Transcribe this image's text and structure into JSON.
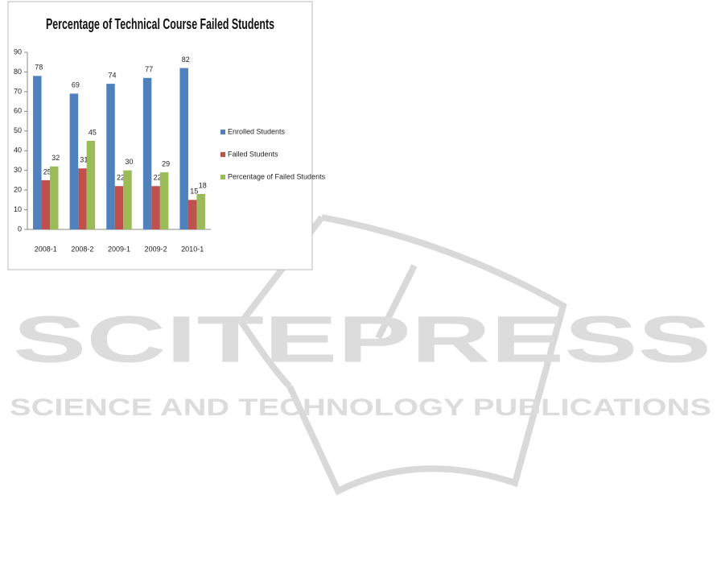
{
  "chart_data": {
    "type": "bar",
    "title": "Percentage of Technical Course Failed Students",
    "categories": [
      "2008-1",
      "2008-2",
      "2009-1",
      "2009-2",
      "2010-1"
    ],
    "series": [
      {
        "name": "Enrolled Students",
        "color": "#4f81bd",
        "values": [
          78,
          69,
          74,
          77,
          82
        ]
      },
      {
        "name": "Failed Students",
        "color": "#c0504d",
        "values": [
          25,
          31,
          22,
          22,
          15
        ]
      },
      {
        "name": "Percentage of Failed Students",
        "color": "#9bbb59",
        "values": [
          32,
          45,
          30,
          29,
          18
        ]
      }
    ],
    "ylim": [
      0,
      90
    ],
    "yticks": [
      0,
      10,
      20,
      30,
      40,
      50,
      60,
      70,
      80,
      90
    ],
    "grid": false,
    "legend": "right"
  },
  "watermark": {
    "title": "SCITEPRESS",
    "subtitle": "SCIENCE AND TECHNOLOGY PUBLICATIONS"
  }
}
